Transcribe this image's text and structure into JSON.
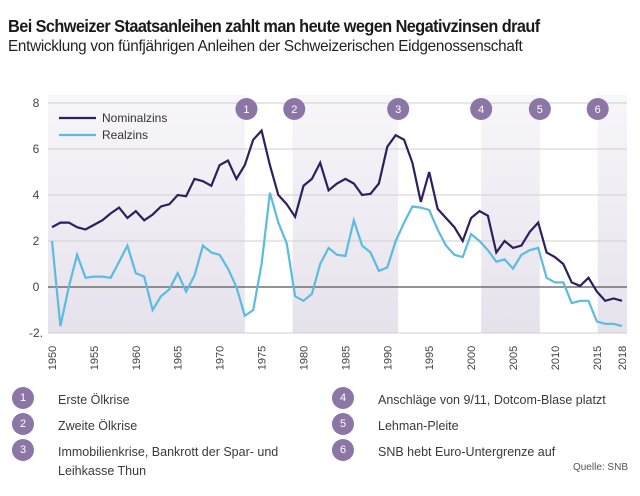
{
  "header": {
    "title": "Bei Schweizer Staatsanleihen zahlt man heute wegen Negativzinsen drauf",
    "subtitle": "Entwicklung von fünfjährigen Anleihen der Schweizerischen Eidgenossenschaft"
  },
  "colors": {
    "nominal": "#2e1f5e",
    "real": "#5bbbe0",
    "shade": "#ebe7f0",
    "badge": "#8b76a6",
    "zero_line": "#555555",
    "grid": "#cfcfcf"
  },
  "chart_data": {
    "type": "line",
    "title": "Bei Schweizer Staatsanleihen zahlt man heute wegen Negativzinsen drauf",
    "subtitle": "Entwicklung von fünfjährigen Anleihen der Schweizerischen Eidgenossenschaft",
    "xlabel": "",
    "ylabel": "",
    "xlim": [
      1950,
      2018
    ],
    "ylim": [
      -2,
      8
    ],
    "yticks": [
      8,
      6,
      4,
      2,
      0,
      -2
    ],
    "ytick_labels": [
      "8",
      "6",
      "4",
      "2",
      "0",
      "-2."
    ],
    "xticks": [
      1950,
      1955,
      1960,
      1965,
      1970,
      1975,
      1980,
      1985,
      1990,
      1995,
      2000,
      2005,
      2010,
      2015,
      2018
    ],
    "xtick_labels": [
      "1950",
      "1955",
      "1960",
      "1965",
      "1970",
      "1975",
      "1980",
      "1985",
      "1990",
      "1995",
      "2000",
      "2005",
      "2010",
      "2015",
      "2018"
    ],
    "grid": true,
    "legend_position": "top-left",
    "x": [
      1950,
      1951,
      1952,
      1953,
      1954,
      1955,
      1956,
      1957,
      1958,
      1959,
      1960,
      1961,
      1962,
      1963,
      1964,
      1965,
      1966,
      1967,
      1968,
      1969,
      1970,
      1971,
      1972,
      1973,
      1974,
      1975,
      1976,
      1977,
      1978,
      1979,
      1980,
      1981,
      1982,
      1983,
      1984,
      1985,
      1986,
      1987,
      1988,
      1989,
      1990,
      1991,
      1992,
      1993,
      1994,
      1995,
      1996,
      1997,
      1998,
      1999,
      2000,
      2001,
      2002,
      2003,
      2004,
      2005,
      2006,
      2007,
      2008,
      2009,
      2010,
      2011,
      2012,
      2013,
      2014,
      2015,
      2016,
      2017,
      2018
    ],
    "series": [
      {
        "name": "Nominalzins",
        "values": [
          2.6,
          2.8,
          2.8,
          2.6,
          2.5,
          2.7,
          2.9,
          3.2,
          3.45,
          3.0,
          3.3,
          2.9,
          3.15,
          3.5,
          3.6,
          4.0,
          3.95,
          4.7,
          4.6,
          4.4,
          5.3,
          5.5,
          4.7,
          5.3,
          6.4,
          6.8,
          5.3,
          4.0,
          3.6,
          3.05,
          4.4,
          4.7,
          5.4,
          4.2,
          4.5,
          4.7,
          4.5,
          4.0,
          4.05,
          4.5,
          6.1,
          6.6,
          6.4,
          5.4,
          3.7,
          5.0,
          3.4,
          3.0,
          2.6,
          2.0,
          3.0,
          3.3,
          3.1,
          1.5,
          2.0,
          1.7,
          1.8,
          2.4,
          2.8,
          1.5,
          1.3,
          1.0,
          0.2,
          0.05,
          0.4,
          -0.2,
          -0.6,
          -0.5,
          -0.6
        ]
      },
      {
        "name": "Realzins",
        "values": [
          2.0,
          -1.7,
          0.0,
          1.4,
          0.4,
          0.45,
          0.45,
          0.4,
          1.1,
          1.8,
          0.6,
          0.45,
          -1.0,
          -0.4,
          -0.1,
          0.6,
          -0.2,
          0.5,
          1.8,
          1.5,
          1.4,
          0.8,
          0.0,
          -1.25,
          -1.0,
          1.0,
          4.1,
          2.8,
          1.9,
          -0.4,
          -0.6,
          -0.3,
          1.0,
          1.7,
          1.4,
          1.35,
          2.9,
          1.8,
          1.5,
          0.7,
          0.85,
          2.0,
          2.8,
          3.5,
          3.45,
          3.35,
          2.5,
          1.8,
          1.4,
          1.3,
          2.3,
          2.0,
          1.6,
          1.1,
          1.2,
          0.8,
          1.4,
          1.6,
          1.7,
          0.4,
          0.2,
          0.2,
          -0.7,
          -0.6,
          -0.6,
          -1.5,
          -1.6,
          -1.6,
          -1.7
        ]
      }
    ],
    "shaded_periods": [
      [
        1950,
        1973
      ],
      [
        1978.7,
        1991.3
      ],
      [
        2001.2,
        2008.2
      ],
      [
        2015.1,
        2018.6
      ]
    ],
    "event_markers": [
      {
        "id": "1",
        "year": 1973.2
      },
      {
        "id": "2",
        "year": 1978.9
      },
      {
        "id": "3",
        "year": 1991.3
      },
      {
        "id": "4",
        "year": 2001.2
      },
      {
        "id": "5",
        "year": 2008.2
      },
      {
        "id": "6",
        "year": 2015.1
      }
    ],
    "legend": [
      "Nominalzins",
      "Realzins"
    ]
  },
  "events": [
    {
      "num": "1",
      "label": "Erste Ölkrise"
    },
    {
      "num": "2",
      "label": "Zweite Ölkrise"
    },
    {
      "num": "3",
      "label": "Immobilienkrise, Bankrott der Spar- und Leihkasse Thun"
    },
    {
      "num": "4",
      "label": "Anschläge von 9/11, Dotcom-Blase platzt"
    },
    {
      "num": "5",
      "label": "Lehman-Pleite"
    },
    {
      "num": "6",
      "label": "SNB hebt Euro-Untergrenze auf"
    }
  ],
  "source": "Quelle: SNB"
}
